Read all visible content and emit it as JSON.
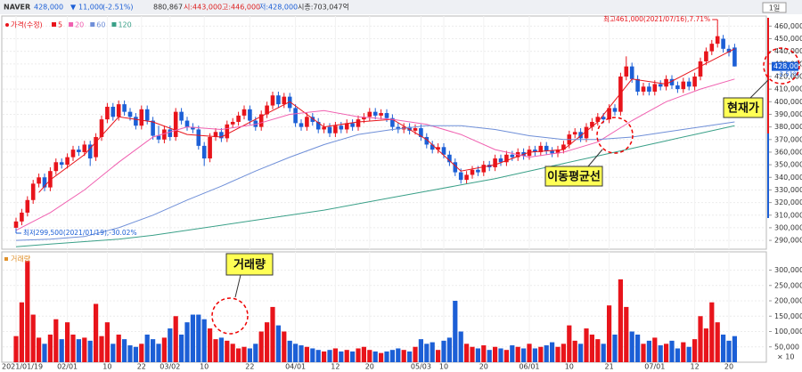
{
  "header": {
    "name": "NAVER",
    "price": "428,000",
    "change_sign": "▼",
    "change": "11,000",
    "change_pct": "(-2.51%)",
    "volume": "880,867",
    "open": "시:443,000",
    "high": "고:446,000",
    "low": "저:428,000",
    "market_cap": "시총:703,047억",
    "period_button": "1일"
  },
  "chart_data": {
    "type": "candlestick",
    "legend_price": "가격(수정)",
    "up_color": "#e8141b",
    "down_color": "#1c5fd6",
    "max_label": "최고461,000(2021/07/16),7.71%",
    "min_label": "최저299,500(2021/01/19),-30.02%",
    "current_label": "428,000",
    "current_change": "-2.51%",
    "volume_title": "거래량",
    "volume_unit": "× 10",
    "callouts": [
      "현재가",
      "이동평균선",
      "거래량"
    ],
    "categories": [
      "2021/01/19",
      null,
      null,
      null,
      null,
      null,
      null,
      null,
      null,
      "02/01",
      null,
      null,
      null,
      null,
      null,
      null,
      "10",
      null,
      null,
      null,
      null,
      null,
      "22",
      null,
      null,
      null,
      null,
      "03/02",
      null,
      null,
      null,
      null,
      null,
      "10",
      null,
      null,
      null,
      null,
      null,
      null,
      null,
      "22",
      null,
      null,
      null,
      null,
      null,
      null,
      null,
      "04/01",
      null,
      null,
      null,
      null,
      null,
      null,
      "12",
      null,
      null,
      null,
      null,
      null,
      "20",
      null,
      null,
      null,
      null,
      null,
      null,
      null,
      null,
      "05/03",
      null,
      null,
      null,
      "10",
      null,
      null,
      null,
      null,
      null,
      null,
      "20",
      null,
      null,
      null,
      null,
      null,
      null,
      null,
      "06/01",
      null,
      null,
      null,
      null,
      null,
      null,
      "10",
      null,
      null,
      null,
      null,
      null,
      null,
      "21",
      null,
      null,
      null,
      null,
      null,
      null,
      null,
      "07/01",
      null,
      null,
      null,
      null,
      null,
      null,
      "12",
      null,
      null,
      null,
      null,
      null,
      "20",
      null
    ],
    "open": [
      300000,
      305000,
      312000,
      322000,
      335000,
      340000,
      332000,
      345000,
      352000,
      350000,
      356000,
      362000,
      360000,
      366000,
      356000,
      372000,
      386000,
      396000,
      388000,
      398000,
      392000,
      388000,
      381000,
      394000,
      385000,
      373000,
      370000,
      378000,
      372000,
      392000,
      385000,
      380000,
      378000,
      365000,
      355000,
      372000,
      376000,
      371000,
      382000,
      384000,
      389000,
      394000,
      385000,
      380000,
      390000,
      397000,
      405000,
      398000,
      404000,
      395000,
      383000,
      380000,
      388000,
      384000,
      378000,
      380000,
      375000,
      381000,
      378000,
      383000,
      380000,
      386000,
      388000,
      392000,
      389000,
      391000,
      387000,
      380000,
      378000,
      380000,
      377000,
      379000,
      372000,
      366000,
      362000,
      364000,
      358000,
      352000,
      344000,
      338000,
      342000,
      346000,
      344000,
      350000,
      348000,
      355000,
      352000,
      358000,
      356000,
      360000,
      357000,
      362000,
      360000,
      365000,
      361000,
      359000,
      362000,
      366000,
      374000,
      376000,
      371000,
      380000,
      384000,
      388000,
      386000,
      395000,
      392000,
      420000,
      428000,
      418000,
      408000,
      412000,
      408000,
      414000,
      412000,
      418000,
      413000,
      410000,
      416000,
      412000,
      420000,
      432000,
      440000,
      446000,
      450000,
      442000,
      443000
    ],
    "high": [
      308000,
      315000,
      325000,
      338000,
      343000,
      343000,
      348000,
      355000,
      355000,
      359000,
      365000,
      365000,
      369000,
      369000,
      375000,
      389000,
      399000,
      399000,
      401000,
      401000,
      395000,
      391000,
      397000,
      397000,
      388000,
      381000,
      381000,
      381000,
      395000,
      395000,
      388000,
      383000,
      381000,
      368000,
      375000,
      379000,
      379000,
      385000,
      387000,
      392000,
      397000,
      397000,
      388000,
      393000,
      400000,
      408000,
      408000,
      407000,
      407000,
      398000,
      386000,
      391000,
      391000,
      387000,
      383000,
      383000,
      384000,
      384000,
      386000,
      386000,
      389000,
      391000,
      395000,
      395000,
      394000,
      394000,
      390000,
      383000,
      383000,
      383000,
      382000,
      382000,
      375000,
      369000,
      367000,
      367000,
      361000,
      355000,
      347000,
      345000,
      349000,
      349000,
      353000,
      353000,
      358000,
      358000,
      361000,
      361000,
      363000,
      363000,
      365000,
      365000,
      368000,
      368000,
      364000,
      365000,
      369000,
      377000,
      379000,
      379000,
      383000,
      387000,
      391000,
      391000,
      398000,
      398000,
      423000,
      436000,
      431000,
      421000,
      415000,
      415000,
      417000,
      417000,
      421000,
      421000,
      416000,
      419000,
      419000,
      423000,
      435000,
      443000,
      449000,
      461000,
      453000,
      445000,
      446000
    ],
    "low": [
      299500,
      302000,
      309000,
      319000,
      332000,
      329000,
      329000,
      342000,
      347000,
      347000,
      353000,
      357000,
      357000,
      349000,
      353000,
      369000,
      383000,
      385000,
      385000,
      389000,
      385000,
      378000,
      378000,
      382000,
      370000,
      367000,
      367000,
      369000,
      369000,
      382000,
      377000,
      375000,
      362000,
      349000,
      352000,
      369000,
      368000,
      368000,
      379000,
      381000,
      386000,
      382000,
      377000,
      377000,
      387000,
      394000,
      395000,
      395000,
      392000,
      380000,
      377000,
      377000,
      381000,
      375000,
      375000,
      372000,
      372000,
      375000,
      375000,
      377000,
      377000,
      383000,
      385000,
      386000,
      386000,
      384000,
      377000,
      375000,
      375000,
      374000,
      374000,
      369000,
      363000,
      359000,
      359000,
      355000,
      349000,
      341000,
      335000,
      335000,
      339000,
      341000,
      341000,
      345000,
      345000,
      349000,
      349000,
      353000,
      353000,
      354000,
      354000,
      357000,
      357000,
      358000,
      356000,
      356000,
      359000,
      363000,
      371000,
      368000,
      368000,
      377000,
      381000,
      383000,
      383000,
      389000,
      389000,
      417000,
      415000,
      405000,
      405000,
      405000,
      405000,
      409000,
      409000,
      410000,
      407000,
      407000,
      409000,
      409000,
      417000,
      429000,
      437000,
      443000,
      439000,
      436000,
      428000
    ],
    "close": [
      305000,
      312000,
      322000,
      335000,
      340000,
      332000,
      345000,
      352000,
      350000,
      356000,
      362000,
      360000,
      366000,
      355000,
      372000,
      386000,
      396000,
      388000,
      398000,
      392000,
      388000,
      381000,
      394000,
      385000,
      373000,
      370000,
      378000,
      372000,
      392000,
      385000,
      380000,
      378000,
      365000,
      355000,
      372000,
      376000,
      371000,
      382000,
      384000,
      389000,
      394000,
      385000,
      380000,
      390000,
      397000,
      405000,
      398000,
      404000,
      395000,
      383000,
      380000,
      388000,
      384000,
      378000,
      380000,
      375000,
      381000,
      378000,
      383000,
      380000,
      386000,
      388000,
      392000,
      389000,
      391000,
      387000,
      380000,
      378000,
      380000,
      377000,
      379000,
      372000,
      366000,
      362000,
      364000,
      358000,
      352000,
      344000,
      338000,
      342000,
      346000,
      344000,
      350000,
      348000,
      355000,
      352000,
      358000,
      356000,
      360000,
      357000,
      362000,
      360000,
      365000,
      361000,
      359000,
      362000,
      366000,
      374000,
      376000,
      371000,
      380000,
      384000,
      388000,
      386000,
      395000,
      392000,
      420000,
      428000,
      418000,
      408000,
      412000,
      408000,
      414000,
      412000,
      418000,
      413000,
      410000,
      416000,
      412000,
      420000,
      432000,
      440000,
      446000,
      452000,
      442000,
      439000,
      428000
    ],
    "volume": [
      85000,
      195000,
      330000,
      155000,
      80000,
      60000,
      90000,
      140000,
      75000,
      130000,
      90000,
      75000,
      80000,
      70000,
      190000,
      85000,
      130000,
      60000,
      90000,
      75000,
      55000,
      50000,
      60000,
      90000,
      75000,
      60000,
      80000,
      110000,
      150000,
      90000,
      130000,
      155000,
      155000,
      140000,
      110000,
      75000,
      80000,
      70000,
      60000,
      45000,
      50000,
      45000,
      60000,
      100000,
      130000,
      180000,
      120000,
      100000,
      70000,
      60000,
      55000,
      50000,
      45000,
      40000,
      35000,
      40000,
      45000,
      35000,
      40000,
      35000,
      45000,
      50000,
      40000,
      35000,
      30000,
      35000,
      40000,
      45000,
      40000,
      35000,
      50000,
      75000,
      60000,
      65000,
      40000,
      70000,
      80000,
      200000,
      100000,
      60000,
      50000,
      45000,
      55000,
      40000,
      50000,
      45000,
      40000,
      55000,
      50000,
      45000,
      60000,
      45000,
      50000,
      55000,
      65000,
      50000,
      60000,
      120000,
      70000,
      60000,
      110000,
      90000,
      75000,
      60000,
      185000,
      90000,
      270000,
      180000,
      100000,
      90000,
      60000,
      70000,
      80000,
      55000,
      60000,
      70000,
      45000,
      65000,
      50000,
      75000,
      150000,
      110000,
      195000,
      130000,
      90000,
      70000,
      85000
    ],
    "moving_averages": [
      {
        "name": "5",
        "color": "#e8141b",
        "x": [
          4,
          6,
          12,
          18,
          24,
          30,
          36,
          42,
          48,
          54,
          60,
          66,
          72,
          78,
          84,
          90,
          96,
          102,
          108,
          114,
          120,
          126
        ],
        "values": [
          328000,
          338000,
          358000,
          388000,
          384000,
          374000,
          372000,
          386000,
          400000,
          380000,
          384000,
          386000,
          370000,
          345000,
          350000,
          360000,
          362000,
          384000,
          418000,
          414000,
          428000,
          442000
        ]
      },
      {
        "name": "20",
        "color": "#f060b0",
        "x": [
          0,
          6,
          12,
          18,
          24,
          30,
          36,
          42,
          48,
          54,
          60,
          66,
          72,
          78,
          84,
          90,
          96,
          102,
          108,
          114,
          120,
          126
        ],
        "values": [
          298000,
          312000,
          330000,
          352000,
          372000,
          380000,
          378000,
          382000,
          390000,
          393000,
          388000,
          386000,
          382000,
          374000,
          362000,
          356000,
          360000,
          368000,
          385000,
          400000,
          410000,
          418000
        ]
      },
      {
        "name": "60",
        "color": "#6f8fd8",
        "x": [
          0,
          6,
          12,
          18,
          24,
          30,
          36,
          42,
          48,
          54,
          60,
          66,
          72,
          78,
          84,
          90,
          96,
          102,
          108,
          114,
          120,
          126
        ],
        "values": [
          290000,
          291000,
          293000,
          300000,
          310000,
          322000,
          333000,
          345000,
          356000,
          366000,
          374000,
          378000,
          381000,
          381000,
          378000,
          373000,
          370000,
          370000,
          372000,
          376000,
          380000,
          384000
        ]
      },
      {
        "name": "120",
        "color": "#3aa088",
        "x": [
          0,
          6,
          12,
          18,
          24,
          30,
          36,
          42,
          48,
          54,
          60,
          66,
          72,
          78,
          84,
          90,
          96,
          102,
          108,
          114,
          120,
          126
        ],
        "values": [
          285000,
          287000,
          289000,
          291000,
          294000,
          298000,
          302000,
          306000,
          310000,
          314000,
          319000,
          324000,
          329000,
          334000,
          339000,
          345000,
          351000,
          357000,
          363000,
          369000,
          375000,
          381000
        ]
      }
    ],
    "ylim": [
      283000,
      468000
    ],
    "yticks": [
      {
        "value": 290000,
        "label": "290,000"
      },
      {
        "value": 300000,
        "label": "300,000"
      },
      {
        "value": 310000,
        "label": "310,000"
      },
      {
        "value": 320000,
        "label": "320,000"
      },
      {
        "value": 330000,
        "label": "330,000"
      },
      {
        "value": 340000,
        "label": "340,000"
      },
      {
        "value": 350000,
        "label": "350,000"
      },
      {
        "value": 360000,
        "label": "360,000"
      },
      {
        "value": 370000,
        "label": "370,000"
      },
      {
        "value": 380000,
        "label": "380,000"
      },
      {
        "value": 390000,
        "label": "390,000"
      },
      {
        "value": 400000,
        "label": "400,000"
      },
      {
        "value": 410000,
        "label": "410,000"
      },
      {
        "value": 420000,
        "label": "420,000"
      },
      {
        "value": 430000,
        "label": "430,000"
      },
      {
        "value": 440000,
        "label": "440,000"
      },
      {
        "value": 450000,
        "label": "450,000"
      },
      {
        "value": 460000,
        "label": "460,000"
      }
    ],
    "volume_ylim": [
      0,
      345000
    ],
    "volume_yticks": [
      {
        "value": 50000,
        "label": "50,000"
      },
      {
        "value": 100000,
        "label": "100,000"
      },
      {
        "value": 150000,
        "label": "150,000"
      },
      {
        "value": 200000,
        "label": "200,000"
      },
      {
        "value": 250000,
        "label": "250,000"
      },
      {
        "value": 300000,
        "label": "300,000"
      }
    ],
    "grid": true
  }
}
